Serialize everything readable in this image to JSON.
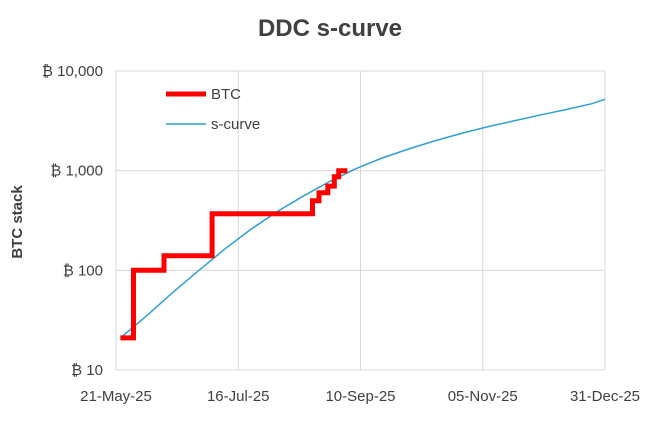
{
  "chart_data": {
    "type": "line",
    "title": "DDC s-curve",
    "xlabel": "",
    "ylabel": "BTC stack",
    "y_scale": "log",
    "ylim": [
      10,
      10000
    ],
    "xlim": [
      "2025-05-21",
      "2025-12-31"
    ],
    "grid": true,
    "legend_position": "top-left",
    "x_ticks": [
      "21-May-25",
      "16-Jul-25",
      "10-Sep-25",
      "05-Nov-25",
      "31-Dec-25"
    ],
    "x_tick_dates": [
      "2025-05-21",
      "2025-07-16",
      "2025-09-10",
      "2025-11-05",
      "2025-12-31"
    ],
    "y_ticks": [
      {
        "value": 10,
        "label": "₿ 10"
      },
      {
        "value": 100,
        "label": "₿ 100"
      },
      {
        "value": 1000,
        "label": "₿ 1,000"
      },
      {
        "value": 10000,
        "label": "₿ 10,000"
      }
    ],
    "series": [
      {
        "name": "BTC",
        "color": "#ff0000",
        "step": true,
        "points": [
          {
            "x": "2025-05-23",
            "y": 21
          },
          {
            "x": "2025-05-29",
            "y": 21
          },
          {
            "x": "2025-05-29",
            "y": 100
          },
          {
            "x": "2025-06-12",
            "y": 100
          },
          {
            "x": "2025-06-12",
            "y": 140
          },
          {
            "x": "2025-07-04",
            "y": 140
          },
          {
            "x": "2025-07-04",
            "y": 370
          },
          {
            "x": "2025-08-19",
            "y": 370
          },
          {
            "x": "2025-08-19",
            "y": 500
          },
          {
            "x": "2025-08-22",
            "y": 500
          },
          {
            "x": "2025-08-22",
            "y": 600
          },
          {
            "x": "2025-08-26",
            "y": 600
          },
          {
            "x": "2025-08-26",
            "y": 700
          },
          {
            "x": "2025-08-29",
            "y": 700
          },
          {
            "x": "2025-08-29",
            "y": 870
          },
          {
            "x": "2025-08-31",
            "y": 870
          },
          {
            "x": "2025-08-31",
            "y": 1000
          },
          {
            "x": "2025-09-04",
            "y": 1000
          }
        ]
      },
      {
        "name": "s-curve",
        "color": "#2e9fd4",
        "step": false,
        "points": [
          {
            "x": "2025-05-23",
            "y": 21
          },
          {
            "x": "2025-06-04",
            "y": 35
          },
          {
            "x": "2025-06-16",
            "y": 60
          },
          {
            "x": "2025-06-28",
            "y": 100
          },
          {
            "x": "2025-07-10",
            "y": 165
          },
          {
            "x": "2025-07-22",
            "y": 260
          },
          {
            "x": "2025-08-03",
            "y": 390
          },
          {
            "x": "2025-08-15",
            "y": 560
          },
          {
            "x": "2025-08-27",
            "y": 780
          },
          {
            "x": "2025-09-08",
            "y": 1050
          },
          {
            "x": "2025-09-20",
            "y": 1340
          },
          {
            "x": "2025-10-02",
            "y": 1650
          },
          {
            "x": "2025-10-14",
            "y": 1990
          },
          {
            "x": "2025-10-26",
            "y": 2360
          },
          {
            "x": "2025-11-07",
            "y": 2750
          },
          {
            "x": "2025-11-19",
            "y": 3150
          },
          {
            "x": "2025-12-01",
            "y": 3600
          },
          {
            "x": "2025-12-13",
            "y": 4100
          },
          {
            "x": "2025-12-25",
            "y": 4700
          },
          {
            "x": "2025-12-31",
            "y": 5200
          }
        ]
      }
    ]
  }
}
